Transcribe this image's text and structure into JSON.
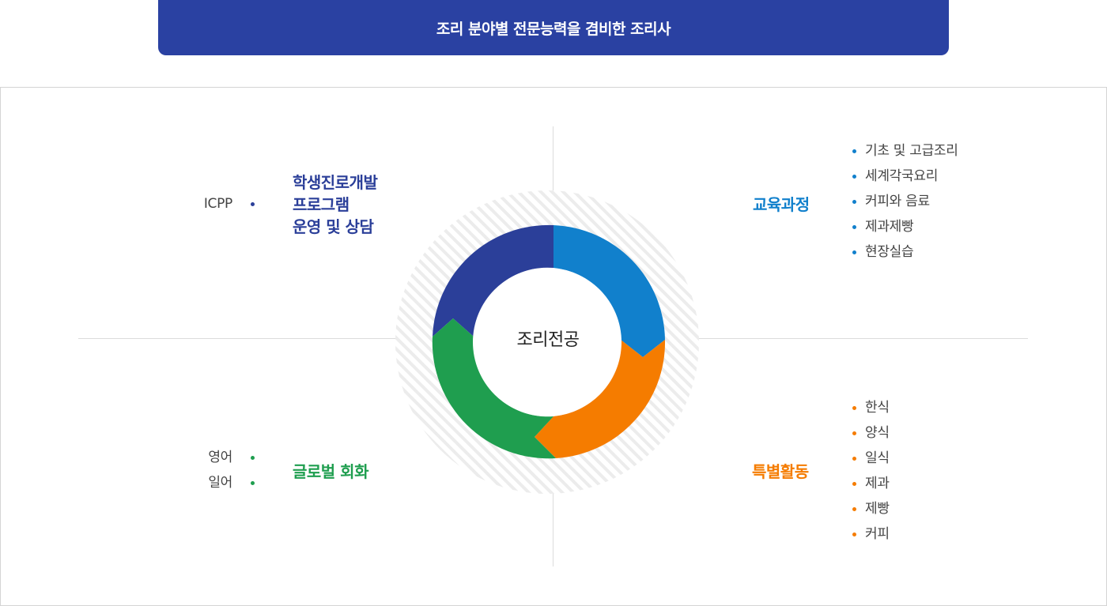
{
  "banner": {
    "title": "조리 분야별 전문능력을 겸비한 조리사"
  },
  "center": {
    "label": "조리전공"
  },
  "quadrants": {
    "top_left": {
      "title_lines": [
        "학생진로개발",
        "프로그램",
        "운영 및 상담"
      ],
      "items": [
        "ICPP"
      ],
      "color": "#2b3f99"
    },
    "top_right": {
      "title": "교육과정",
      "items": [
        "기초 및 고급조리",
        "세계각국요리",
        "커피와 음료",
        "제과제빵",
        "현장실습"
      ],
      "color": "#1180cc"
    },
    "bottom_left": {
      "title": "글로벌 회화",
      "items": [
        "영어",
        "일어"
      ],
      "color": "#1f9e4f"
    },
    "bottom_right": {
      "title": "특별활동",
      "items": [
        "한식",
        "양식",
        "일식",
        "제과",
        "제빵",
        "커피"
      ],
      "color": "#f57c00"
    }
  }
}
